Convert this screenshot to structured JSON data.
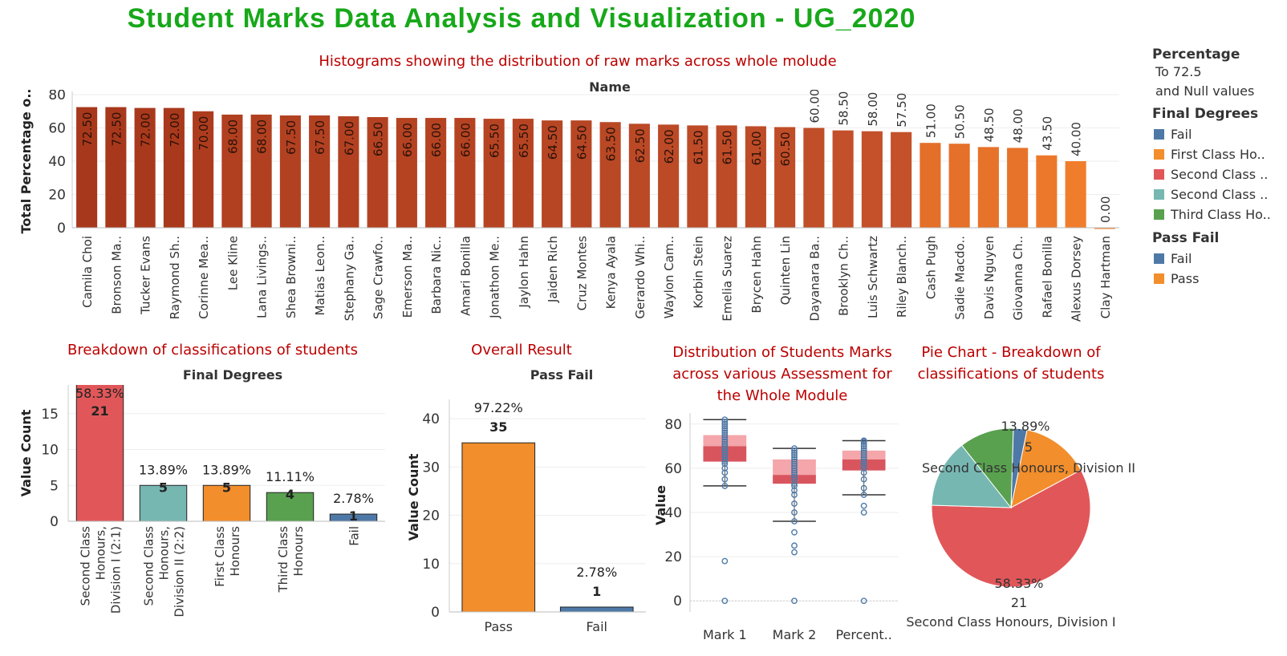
{
  "page": {
    "title": "Student Marks Data Analysis and Visualization - UG_2020"
  },
  "legend": {
    "percentage_title": "Percentage",
    "percentage_lines": [
      "To 72.5",
      "and Null values"
    ],
    "final_degrees_title": "Final Degrees",
    "final_degrees_items": [
      {
        "label": "Fail",
        "color": "#4e79a7"
      },
      {
        "label": "First Class Ho..",
        "color": "#f28e2b"
      },
      {
        "label": "Second Class ..",
        "color": "#e15759"
      },
      {
        "label": "Second Class ..",
        "color": "#76b7b2"
      },
      {
        "label": "Third Class Ho..",
        "color": "#59a14f"
      }
    ],
    "pass_fail_title": "Pass Fail",
    "pass_fail_items": [
      {
        "label": "Fail",
        "color": "#4e79a7"
      },
      {
        "label": "Pass",
        "color": "#f28e2b"
      }
    ]
  },
  "chart_data": [
    {
      "type": "bar",
      "title": "Histograms showing the distribution of raw marks across whole molude",
      "header": "Name",
      "ylabel": "Total Percentage o..",
      "ylim": [
        0,
        80
      ],
      "yticks": [
        0,
        20,
        40,
        60,
        80
      ],
      "categories": [
        "Camila Choi",
        "Bronson Ma..",
        "Tucker Evans",
        "Raymond Sh..",
        "Corinne Mea..",
        "Lee Kline",
        "Lana Livings..",
        "Shea Browni..",
        "Matias Leon..",
        "Stephany Ga..",
        "Sage Crawfo..",
        "Emerson Ma..",
        "Barbara Nic..",
        "Amari Bonilla",
        "Jonathon Me..",
        "Jaylon Hahn",
        "Jaiden Rich",
        "Cruz Montes",
        "Kenya Ayala",
        "Gerardo Whi..",
        "Waylon Cam..",
        "Korbin Stein",
        "Emelia Suarez",
        "Brycen Hahn",
        "Quinten Lin",
        "Dayanara Ba..",
        "Brooklyn Ch..",
        "Luis Schwartz",
        "Riley Blanch..",
        "Cash Pugh",
        "Sadie Macdo..",
        "Davis Nguyen",
        "Giovanna Ch..",
        "Rafael Bonilla",
        "Alexus Dorsey",
        "Clay Hartman"
      ],
      "values": [
        72.5,
        72.5,
        72,
        72,
        70,
        68,
        68,
        67.5,
        67.5,
        67,
        66.5,
        66,
        66,
        66,
        65.5,
        65.5,
        64.5,
        64.5,
        63.5,
        62.5,
        62,
        61.5,
        61.5,
        61,
        60.5,
        60,
        58.5,
        58,
        57.5,
        51,
        50.5,
        48.5,
        48,
        43.5,
        40,
        0
      ],
      "value_labels": [
        "72.50",
        "72.50",
        "72.00",
        "72.00",
        "70.00",
        "68.00",
        "68.00",
        "67.50",
        "67.50",
        "67.00",
        "66.50",
        "66.00",
        "66.00",
        "66.00",
        "65.50",
        "65.50",
        "64.50",
        "64.50",
        "63.50",
        "62.50",
        "62.00",
        "61.50",
        "61.50",
        "61.00",
        "60.50",
        "60.00",
        "58.50",
        "58.00",
        "57.50",
        "51.00",
        "50.50",
        "48.50",
        "48.00",
        "43.50",
        "40.00",
        "0.00"
      ],
      "color_scale": {
        "low": "#f07d2c",
        "high": "#a8381c"
      }
    },
    {
      "type": "bar",
      "title": "Breakdown of classifications of students",
      "header": "Final Degrees",
      "ylabel": "Value Count",
      "ylim": [
        0,
        19
      ],
      "yticks": [
        0,
        5,
        10,
        15
      ],
      "categories": [
        "Second Class Honours, Division I (2:1)",
        "Second Class Honours, Division II (2:2)",
        "First Class Honours",
        "Third Class Honours",
        "Fail"
      ],
      "category_lines": [
        [
          "Second Class",
          "Honours,",
          "Division I (2:1)"
        ],
        [
          "Second Class",
          "Honours,",
          "Division II (2:2)"
        ],
        [
          "First Class",
          "Honours"
        ],
        [
          "Third Class",
          "Honours"
        ],
        [
          "Fail"
        ]
      ],
      "values": [
        21,
        5,
        5,
        4,
        1
      ],
      "percent_labels": [
        "58.33%",
        "13.89%",
        "13.89%",
        "11.11%",
        "2.78%"
      ],
      "colors": [
        "#e15759",
        "#76b7b2",
        "#f28e2b",
        "#59a14f",
        "#4e79a7"
      ]
    },
    {
      "type": "bar",
      "title": "Overall Result",
      "header": "Pass Fail",
      "ylabel": "Value Count",
      "ylim": [
        0,
        44
      ],
      "yticks": [
        0,
        10,
        20,
        30,
        40
      ],
      "categories": [
        "Pass",
        "Fail"
      ],
      "values": [
        35,
        1
      ],
      "percent_labels": [
        "97.22%",
        "2.78%"
      ],
      "colors": [
        "#f28e2b",
        "#4e79a7"
      ]
    },
    {
      "type": "box",
      "title_lines": [
        "Distribution of Students Marks",
        "across various Assessment for",
        "the Whole Module"
      ],
      "ylabel": "Value",
      "ylim": [
        -5,
        85
      ],
      "yticks": [
        0,
        20,
        40,
        60,
        80
      ],
      "categories": [
        "Mark 1",
        "Mark 2",
        "Percent.."
      ],
      "boxes": [
        {
          "whisker_low": 52,
          "q1": 63,
          "median": 70,
          "q3": 75,
          "whisker_high": 82,
          "points": [
            0,
            18,
            52,
            55,
            58,
            60,
            62,
            63,
            64,
            65,
            66,
            67,
            68,
            69,
            70,
            70,
            71,
            72,
            73,
            74,
            75,
            76,
            77,
            78,
            79,
            80,
            81,
            82
          ]
        },
        {
          "whisker_low": 36,
          "q1": 53,
          "median": 57,
          "q3": 64,
          "whisker_high": 69,
          "points": [
            0,
            22,
            25,
            31,
            36,
            40,
            44,
            48,
            50,
            52,
            53,
            55,
            56,
            57,
            58,
            59,
            60,
            61,
            62,
            63,
            64,
            65,
            66,
            67,
            68,
            69
          ]
        },
        {
          "whisker_low": 48,
          "q1": 59,
          "median": 64,
          "q3": 68,
          "whisker_high": 72.5,
          "points": [
            0,
            40,
            43,
            48,
            51,
            55,
            58,
            60,
            61,
            62,
            63,
            64,
            65,
            66,
            67,
            68,
            69,
            70,
            71,
            72,
            72.5
          ]
        }
      ],
      "box_colors": {
        "upper": "#f4a6aa",
        "lower": "#d9555d"
      }
    },
    {
      "type": "pie",
      "title_lines": [
        "Pie Chart - Breakdown of",
        "classifications of students"
      ],
      "slices": [
        {
          "label": "Fail",
          "value": 1,
          "color": "#4e79a7"
        },
        {
          "label": "First Class Honours",
          "value": 5,
          "color": "#f28e2b"
        },
        {
          "label": "Second Class Honours, Division I",
          "value": 21,
          "color": "#e15759"
        },
        {
          "label": "Second Class Honours, Division II",
          "value": 5,
          "color": "#76b7b2"
        },
        {
          "label": "Third Class Honours",
          "value": 4,
          "color": "#59a14f"
        }
      ],
      "annotations": [
        {
          "percent": "13.89%",
          "count": "5",
          "name": "Second Class Honours, Division II"
        },
        {
          "percent": "58.33%",
          "count": "21",
          "name": "Second Class Honours, Division I"
        }
      ]
    }
  ]
}
